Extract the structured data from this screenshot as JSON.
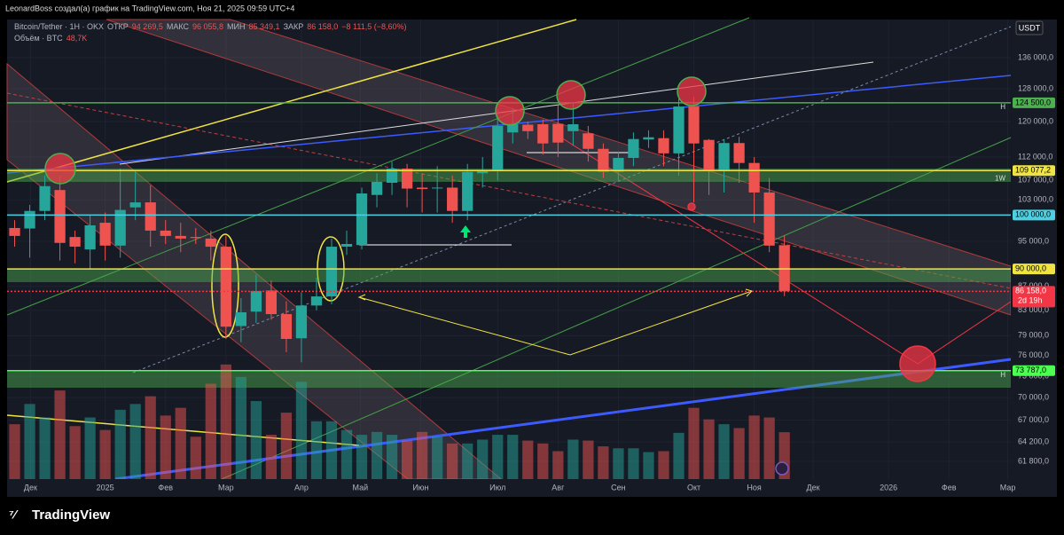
{
  "header": "LeonardBoss создал(а) график на TradingView.com, Ноя 21, 2025 09:59 UTC+4",
  "footer": "TradingView",
  "legend": {
    "symbol": "Bitcoin/Tether · 1Н · OKX",
    "open_label": "ОТКР",
    "open": "94 269,5",
    "high_label": "МАКС",
    "high": "96 055,8",
    "low_label": "МИН",
    "low": "85 349,1",
    "close_label": "ЗАКР",
    "close": "86 158,0",
    "change": "−8 111,5 (−8,60%)",
    "volume_label": "Объём · BTC",
    "volume": "48,7K"
  },
  "chart_data": {
    "type": "candlestick",
    "log_scale": true,
    "grid": true,
    "currency": "USDT",
    "x": [
      0,
      1,
      2,
      3,
      4,
      5,
      6,
      7,
      8,
      9,
      10,
      11,
      12,
      13,
      14,
      15,
      16,
      17,
      18,
      19,
      20,
      21,
      22,
      23,
      24,
      25,
      26,
      27,
      28,
      29,
      30,
      31,
      32,
      33,
      34,
      35,
      36,
      37,
      38,
      39,
      40,
      41,
      42,
      43,
      44,
      45,
      46,
      47,
      48,
      49,
      50,
      51
    ],
    "open": [
      97500,
      97400,
      100800,
      105000,
      95800,
      93500,
      98500,
      94200,
      101500,
      102500,
      97000,
      96000,
      95800,
      95500,
      94000,
      80500,
      82800,
      86300,
      82400,
      78600,
      83800,
      85300,
      94000,
      94300,
      104000,
      106500,
      109500,
      105500,
      105400,
      105500,
      100800,
      108500,
      109200,
      117500,
      119300,
      119400,
      119500,
      117800,
      117300,
      113800,
      108800,
      111800,
      115900,
      116200,
      112800,
      123600,
      115800,
      109200,
      115100,
      110700,
      104500,
      94269.5
    ],
    "high": [
      99000,
      102000,
      108000,
      108000,
      97000,
      100000,
      100500,
      109500,
      109000,
      106000,
      99000,
      98500,
      97500,
      97000,
      96000,
      85000,
      89000,
      88000,
      84500,
      86000,
      88500,
      95500,
      97000,
      105500,
      108500,
      111000,
      110500,
      108500,
      110000,
      108000,
      110500,
      112000,
      123000,
      123200,
      120000,
      120500,
      124000,
      124500,
      119000,
      115000,
      113000,
      117500,
      118000,
      118000,
      125500,
      126000,
      116000,
      116000,
      116500,
      112000,
      107500,
      96055.8
    ],
    "low": [
      94000,
      92000,
      99000,
      91500,
      91000,
      90000,
      91500,
      92000,
      99000,
      94000,
      94500,
      93000,
      94500,
      91500,
      78500,
      78000,
      81000,
      81500,
      76500,
      75000,
      83000,
      84000,
      92500,
      93500,
      101500,
      104000,
      101500,
      100500,
      100500,
      98500,
      99000,
      105500,
      107000,
      115000,
      116000,
      112500,
      112000,
      114500,
      111000,
      107500,
      107000,
      110000,
      114000,
      110000,
      108000,
      102500,
      104000,
      104500,
      106500,
      98500,
      93000,
      85349.1
    ],
    "close": [
      96000,
      100800,
      105800,
      94700,
      94000,
      98000,
      94200,
      101000,
      102500,
      97000,
      96000,
      95500,
      95600,
      94000,
      80400,
      82700,
      86200,
      82400,
      78500,
      83800,
      85300,
      94000,
      94500,
      104300,
      106700,
      109500,
      105300,
      105200,
      105500,
      100800,
      108800,
      109200,
      119000,
      119400,
      117800,
      115000,
      115200,
      119400,
      113800,
      108800,
      111800,
      116000,
      116400,
      112800,
      123600,
      115000,
      109200,
      115100,
      110700,
      104500,
      94200,
      86158
    ],
    "volume": [
      57000,
      78000,
      64000,
      92000,
      55000,
      64000,
      51000,
      72000,
      78000,
      86000,
      66000,
      74000,
      44000,
      99000,
      119000,
      106000,
      81000,
      46000,
      69000,
      101000,
      60000,
      60000,
      51000,
      46000,
      49000,
      46000,
      40000,
      49000,
      44000,
      37000,
      37000,
      41000,
      46000,
      46000,
      40000,
      37000,
      29000,
      41000,
      40000,
      34000,
      32000,
      32000,
      28000,
      29000,
      48000,
      74000,
      62000,
      57000,
      53000,
      66000,
      64000,
      48700
    ],
    "up_color": "#26a69a",
    "down_color": "#ef5350",
    "xlim": [
      -0.5,
      66
    ],
    "ylim": [
      59700,
      146500
    ],
    "volume_lim": [
      0,
      140000
    ],
    "xticks": [
      {
        "value": 1.05,
        "label": "Дек"
      },
      {
        "value": 6,
        "label": "2025"
      },
      {
        "value": 10,
        "label": "Фев"
      },
      {
        "value": 14,
        "label": "Мар"
      },
      {
        "value": 19,
        "label": "Апр"
      },
      {
        "value": 22.9,
        "label": "Май"
      },
      {
        "value": 26.9,
        "label": "Июн"
      },
      {
        "value": 32,
        "label": "Июл"
      },
      {
        "value": 36,
        "label": "Авг"
      },
      {
        "value": 40,
        "label": "Сен"
      },
      {
        "value": 45,
        "label": "Окт"
      },
      {
        "value": 49,
        "label": "Ноя"
      },
      {
        "value": 52.9,
        "label": "Дек"
      },
      {
        "value": 57.9,
        "label": "2026"
      },
      {
        "value": 61.9,
        "label": "Фев"
      },
      {
        "value": 65.8,
        "label": "Мар"
      }
    ],
    "yticks": [
      {
        "value": 136000,
        "label": "136 000,0"
      },
      {
        "value": 128000,
        "label": "128 000,0"
      },
      {
        "value": 120000,
        "label": "120 000,0"
      },
      {
        "value": 112000,
        "label": "112 000,0"
      },
      {
        "value": 107000,
        "label": "107 000,0"
      },
      {
        "value": 103000,
        "label": "103 000,0"
      },
      {
        "value": 95000,
        "label": "95 000,0"
      },
      {
        "value": 87000,
        "label": "87 000,0"
      },
      {
        "value": 83000,
        "label": "83 000,0"
      },
      {
        "value": 79000,
        "label": "79 000,0"
      },
      {
        "value": 76000,
        "label": "76 000,0"
      },
      {
        "value": 73000,
        "label": "73 000,0"
      },
      {
        "value": 70000,
        "label": "70 000,0"
      },
      {
        "value": 67000,
        "label": "67 000,0"
      },
      {
        "value": 64200,
        "label": "64 200,0"
      },
      {
        "value": 61800,
        "label": "61 800,0"
      }
    ],
    "levels": [
      {
        "value": 124500,
        "label": "124 500,0",
        "color": "#4caf50",
        "tag": "Н"
      },
      {
        "value": 109077.2,
        "label": "109 077,2",
        "color": "#f0e442",
        "tag": "1W"
      },
      {
        "value": 100000,
        "label": "100 000,0",
        "color": "#4dd0e1"
      },
      {
        "value": 90000,
        "label": "90 000,0",
        "color": "#f0e442"
      },
      {
        "value": 86158,
        "label": "86 158,0",
        "color": "#f23645",
        "countdown": "2d 19h"
      },
      {
        "value": 73787,
        "label": "73 787,0",
        "color": "#4cff50",
        "tag": "Н"
      }
    ]
  }
}
